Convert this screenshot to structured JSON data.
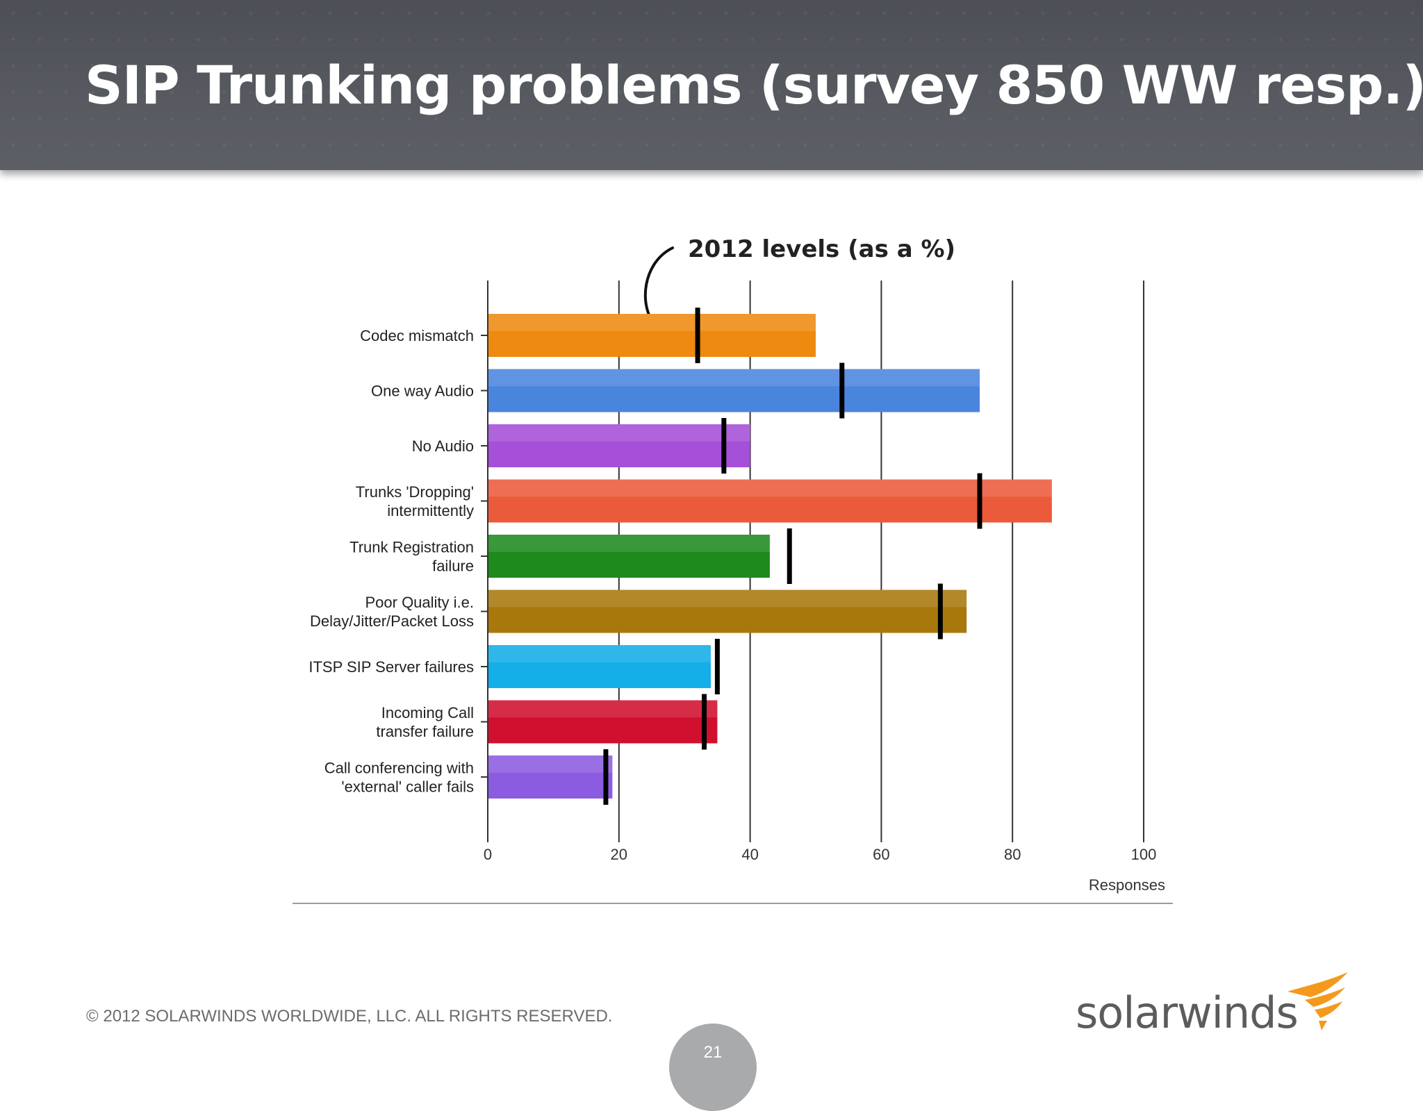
{
  "slide": {
    "title": "SIP Trunking problems (survey 850 WW resp.)",
    "copyright": "© 2012 SOLARWINDS WORLDWIDE, LLC.  ALL RIGHTS RESERVED.",
    "page_number": "21",
    "brand": "solarwinds",
    "brand_icon": "solarwinds-bird-logo"
  },
  "chart_data": {
    "type": "bar",
    "orientation": "horizontal",
    "annotation": "2012 levels (as a %)",
    "xlabel": "Responses",
    "ylabel": "",
    "xlim": [
      0,
      100
    ],
    "xticks": [
      "0",
      "20",
      "40",
      "60",
      "80",
      "100"
    ],
    "grid": true,
    "categories": [
      [
        "Codec mismatch"
      ],
      [
        "One way Audio"
      ],
      [
        "No Audio"
      ],
      [
        "Trunks 'Dropping'",
        "intermittently"
      ],
      [
        "Trunk Registration",
        "failure"
      ],
      [
        "Poor Quality i.e.",
        "Delay/Jitter/Packet Loss"
      ],
      [
        "ITSP SIP Server failures"
      ],
      [
        "Incoming Call",
        "transfer failure"
      ],
      [
        "Call conferencing with",
        "'external' caller fails"
      ]
    ],
    "series": [
      {
        "values": [
          50,
          75,
          40,
          86,
          43,
          73,
          34,
          35,
          19
        ]
      },
      {
        "values": [
          32,
          54,
          36,
          75,
          46,
          69,
          35,
          33,
          18
        ]
      }
    ],
    "bar_colors": [
      "#ee8a10",
      "#4a85dd",
      "#a64fd8",
      "#ec5a3c",
      "#1e8a1e",
      "#a8780c",
      "#14aee8",
      "#d0102e",
      "#8c5ce0"
    ],
    "marker_color": "#000000"
  }
}
